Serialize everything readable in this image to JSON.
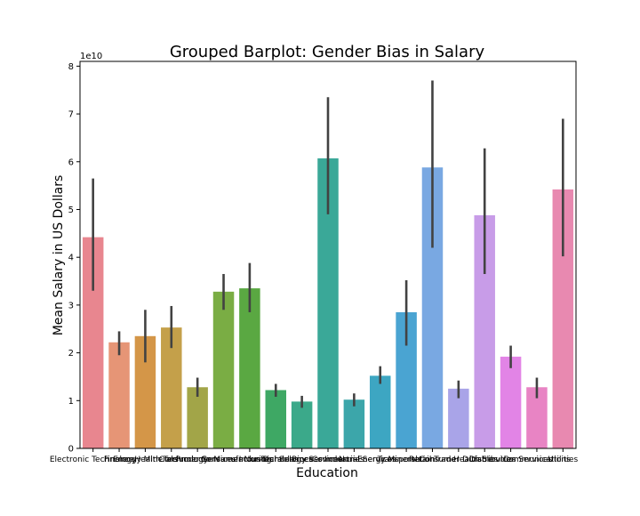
{
  "chart_data": {
    "type": "bar",
    "title": "Grouped Barplot: Gender Bias in Salary",
    "xlabel": "Education",
    "ylabel": "Mean Salary in US Dollars",
    "y_offset_text": "1e10",
    "y_scale": 10000000000,
    "ylim": [
      0,
      8.1
    ],
    "yticks": [
      0,
      1,
      2,
      3,
      4,
      5,
      6,
      7,
      8
    ],
    "grid": false,
    "legend": "none",
    "categories": [
      "Electronic Technology",
      "Finance",
      "Energy Minerals",
      "Health Technology",
      "Consumer Services",
      "Producer Manufacturing",
      "Consumer Non-Durables",
      "Industrial Services",
      "Technology Services",
      "Process Industries",
      "Commercial Services",
      "Non-Energy Minerals",
      "Transportation",
      "Retail Trade",
      "Consumer Durables",
      "Health Services",
      "Distribution Services",
      "Communications",
      "Utilities"
    ],
    "values": [
      4.42,
      2.22,
      2.35,
      2.53,
      1.28,
      3.28,
      3.35,
      1.22,
      0.98,
      6.07,
      1.02,
      1.52,
      2.85,
      5.88,
      1.25,
      4.88,
      1.92,
      1.28,
      5.42
    ],
    "err_low": [
      3.3,
      1.95,
      1.8,
      2.1,
      1.08,
      2.9,
      2.85,
      1.08,
      0.85,
      4.9,
      0.88,
      1.35,
      2.15,
      4.2,
      1.05,
      3.65,
      1.68,
      1.05,
      4.02
    ],
    "err_high": [
      5.65,
      2.45,
      2.9,
      2.98,
      1.48,
      3.65,
      3.88,
      1.35,
      1.1,
      7.35,
      1.15,
      1.72,
      3.52,
      7.7,
      1.42,
      6.28,
      2.15,
      1.48,
      6.9
    ],
    "colors": [
      "#e8868f",
      "#e69576",
      "#d49648",
      "#c4a04a",
      "#a2a548",
      "#7aad44",
      "#5aa842",
      "#3ea864",
      "#3ba98a",
      "#3aa898",
      "#3ca6aa",
      "#3da6c2",
      "#4aa4d2",
      "#79a8e2",
      "#a9a4e8",
      "#c89ce8",
      "#e284e6",
      "#e884c4",
      "#e889b0"
    ],
    "error_color": "#424242"
  }
}
